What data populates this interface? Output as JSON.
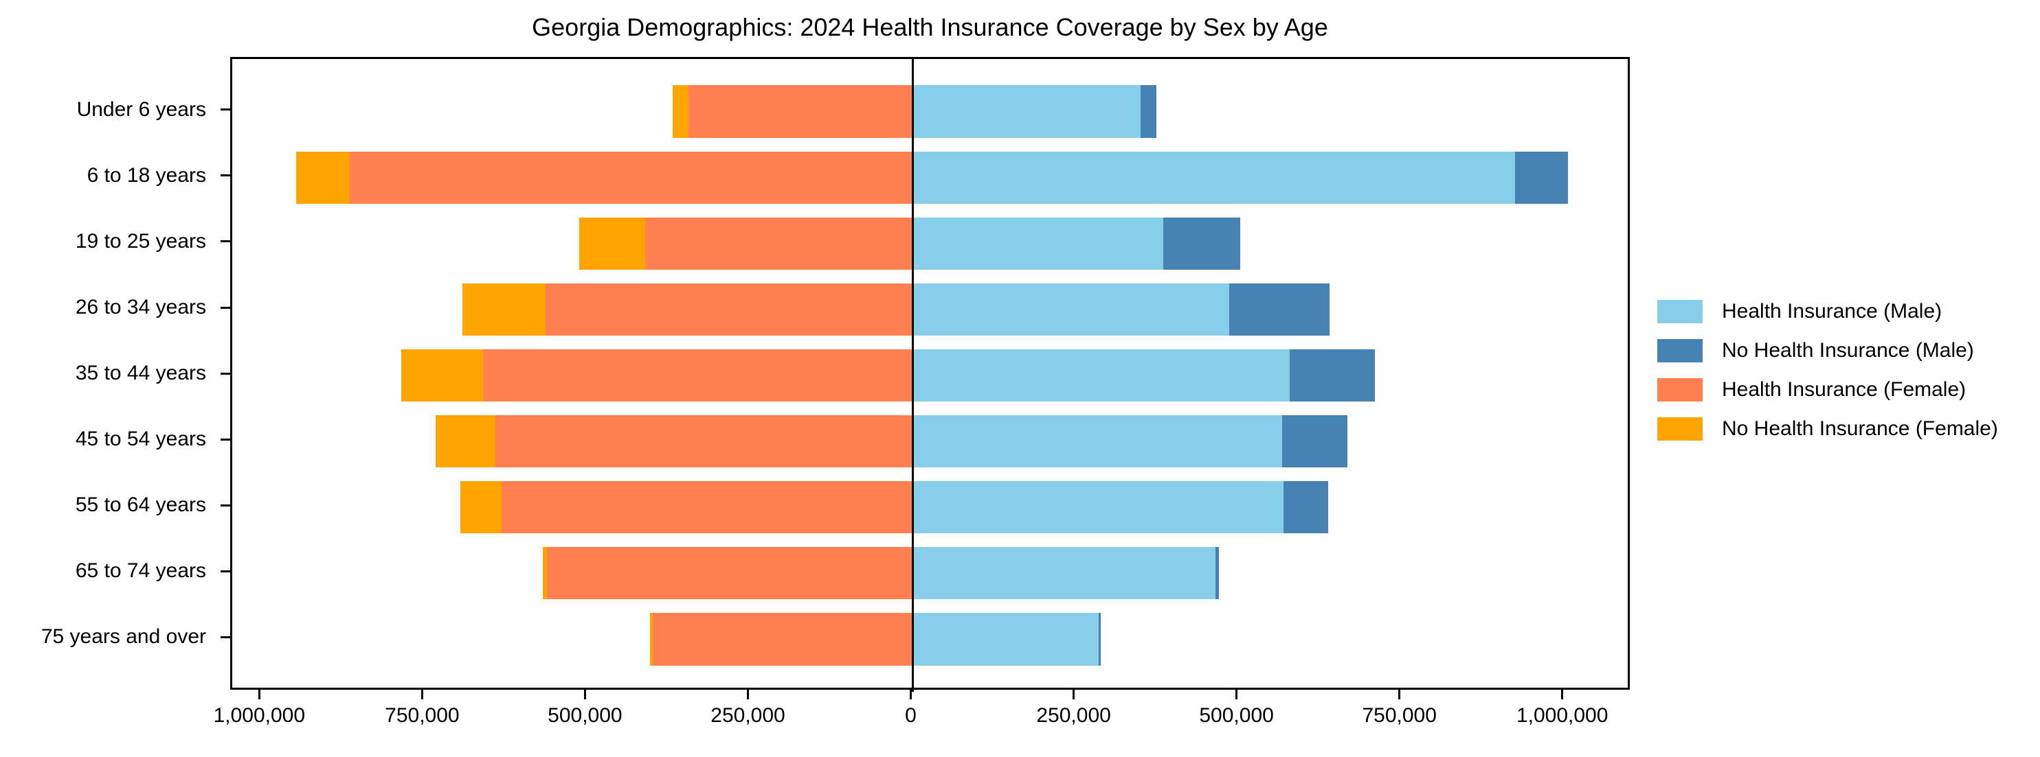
{
  "chart_data": {
    "type": "bar",
    "orientation": "horizontal-diverging-stacked",
    "title": "Georgia Demographics: 2024 Health Insurance Coverage by Sex by Age",
    "categories": [
      "Under 6 years",
      "6 to 18 years",
      "19 to 25 years",
      "26 to 34 years",
      "35 to 44 years",
      "45 to 54 years",
      "55 to 64 years",
      "65 to 74 years",
      "75 years and over"
    ],
    "series": [
      {
        "name": "Health Insurance (Male)",
        "side": "male",
        "stack_order": 0,
        "color": "#87CEEB",
        "values": [
          350000,
          924000,
          384000,
          486000,
          578000,
          567000,
          569000,
          464000,
          285000
        ]
      },
      {
        "name": "No Health Insurance (Male)",
        "side": "male",
        "stack_order": 1,
        "color": "#4682B4",
        "values": [
          24000,
          82000,
          119000,
          154000,
          131000,
          100000,
          68000,
          6000,
          3000
        ]
      },
      {
        "name": "Health Insurance (Female)",
        "side": "female",
        "stack_order": 0,
        "color": "#FF7F50",
        "values": [
          344000,
          864000,
          411000,
          564000,
          660000,
          641000,
          631000,
          562000,
          399000
        ]
      },
      {
        "name": "No Health Insurance (Female)",
        "side": "female",
        "stack_order": 1,
        "color": "#FFA500",
        "values": [
          25000,
          83000,
          101000,
          127000,
          125000,
          92000,
          64000,
          6000,
          4000
        ]
      }
    ],
    "x_ticks": [
      {
        "value": -1000000,
        "label": "1,000,000"
      },
      {
        "value": -750000,
        "label": "750,000"
      },
      {
        "value": -500000,
        "label": "500,000"
      },
      {
        "value": -250000,
        "label": "250,000"
      },
      {
        "value": 0,
        "label": "0"
      },
      {
        "value": 250000,
        "label": "250,000"
      },
      {
        "value": 500000,
        "label": "500,000"
      },
      {
        "value": 750000,
        "label": "750,000"
      },
      {
        "value": 1000000,
        "label": "1,000,000"
      }
    ],
    "xlim": [
      -1044650,
      1103650
    ],
    "bar_height_fraction": 0.8,
    "grid": false,
    "legend_position": "right-outside",
    "zero_line_color": "#000000",
    "axis_color": "#000000",
    "background_color": "#ffffff"
  }
}
